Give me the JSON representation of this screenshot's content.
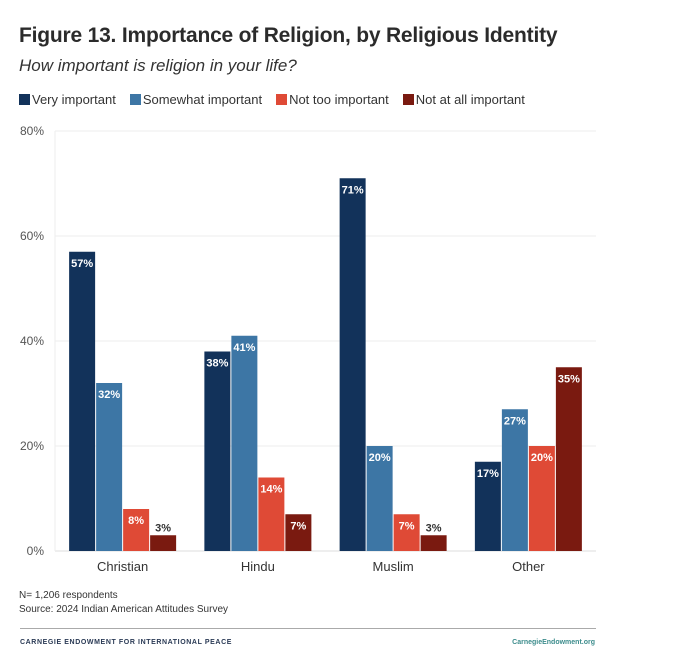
{
  "header": {
    "title": "Figure 13. Importance of Religion, by Religious Identity",
    "subtitle": "How important is religion in your life?"
  },
  "footer": {
    "n_note": "N= 1,206 respondents",
    "source": "Source: 2024 Indian American Attitudes Survey",
    "brand": "CARNEGIE ENDOWMENT FOR INTERNATIONAL PEACE",
    "site": "CarnegieEndowment.org"
  },
  "chart_data": {
    "type": "bar",
    "title": "Figure 13. Importance of Religion, by Religious Identity",
    "subtitle": "How important is religion in your life?",
    "xlabel": "",
    "ylabel": "",
    "ylim": [
      0,
      80
    ],
    "yticks": [
      0,
      20,
      40,
      60,
      80
    ],
    "ytick_labels": [
      "0%",
      "20%",
      "40%",
      "60%",
      "80%"
    ],
    "grid": true,
    "legend_position": "top-left",
    "categories": [
      "Christian",
      "Hindu",
      "Muslim",
      "Other"
    ],
    "series": [
      {
        "name": "Very important",
        "color": "#12325a",
        "values": [
          57,
          38,
          71,
          17
        ],
        "labels": [
          "57%",
          "38%",
          "71%",
          "17%"
        ]
      },
      {
        "name": "Somewhat important",
        "color": "#3d76a5",
        "values": [
          32,
          41,
          20,
          27
        ],
        "labels": [
          "32%",
          "41%",
          "20%",
          "27%"
        ]
      },
      {
        "name": "Not too important",
        "color": "#df4a36",
        "values": [
          8,
          14,
          7,
          20
        ],
        "labels": [
          "8%",
          "14%",
          "7%",
          "20%"
        ]
      },
      {
        "name": "Not at all important",
        "color": "#7a1a10",
        "values": [
          3,
          7,
          3,
          35
        ],
        "labels": [
          "3%",
          "7%",
          "3%",
          "35%"
        ]
      }
    ]
  }
}
